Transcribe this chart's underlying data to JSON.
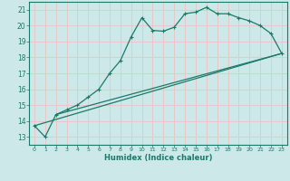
{
  "xlabel": "Humidex (Indice chaleur)",
  "bg_color": "#cce8e8",
  "grid_color": "#e8c8c8",
  "line_color": "#1a7a6a",
  "xlim": [
    -0.5,
    23.5
  ],
  "ylim": [
    12.5,
    21.5
  ],
  "yticks": [
    13,
    14,
    15,
    16,
    17,
    18,
    19,
    20,
    21
  ],
  "xticks": [
    0,
    1,
    2,
    3,
    4,
    5,
    6,
    7,
    8,
    9,
    10,
    11,
    12,
    13,
    14,
    15,
    16,
    17,
    18,
    19,
    20,
    21,
    22,
    23
  ],
  "line1_x": [
    0,
    1,
    2,
    3,
    4,
    5,
    6,
    7,
    8,
    9,
    10,
    11,
    12,
    13,
    14,
    15,
    16,
    17,
    18,
    19,
    20,
    21,
    22,
    23
  ],
  "line1_y": [
    13.7,
    13.0,
    14.4,
    14.7,
    15.0,
    15.5,
    16.0,
    17.0,
    17.8,
    19.3,
    20.5,
    19.7,
    19.65,
    19.9,
    20.75,
    20.85,
    21.15,
    20.75,
    20.75,
    20.5,
    20.3,
    20.0,
    19.5,
    18.25
  ],
  "line2_x": [
    0,
    23
  ],
  "line2_y": [
    13.7,
    18.25
  ],
  "line3_x": [
    2,
    23
  ],
  "line3_y": [
    14.4,
    18.25
  ]
}
